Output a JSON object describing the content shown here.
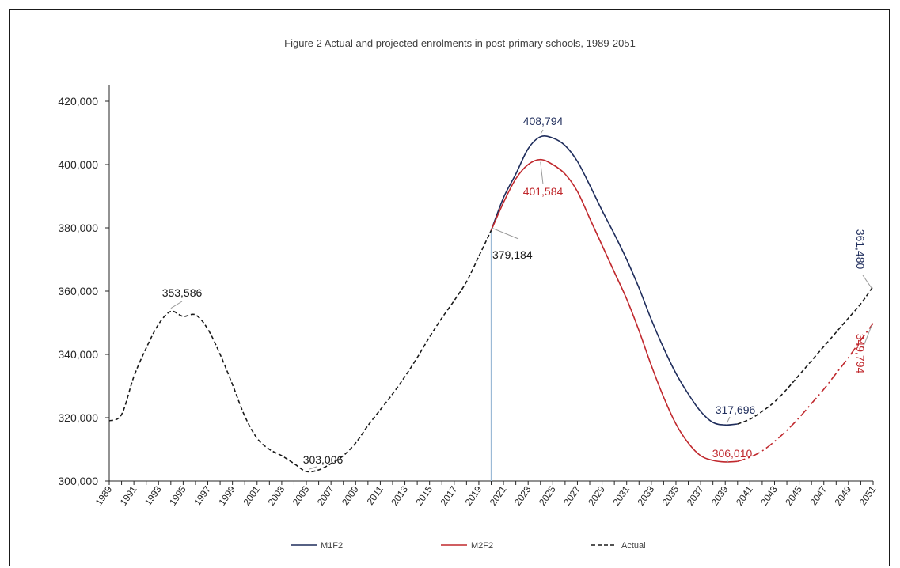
{
  "chart_data": {
    "type": "line",
    "title": "Figure 2 Actual and projected enrolments in post-primary schools, 1989-2051",
    "xlabel": "",
    "ylabel": "",
    "ylim": [
      300000,
      420000
    ],
    "xlim": [
      1989,
      2051
    ],
    "yticks": [
      "300,000",
      "320,000",
      "340,000",
      "360,000",
      "380,000",
      "400,000",
      "420,000"
    ],
    "ytick_values": [
      300000,
      320000,
      340000,
      360000,
      380000,
      400000,
      420000
    ],
    "xticks": [
      "1989",
      "1991",
      "1993",
      "1995",
      "1997",
      "1999",
      "2001",
      "2003",
      "2005",
      "2007",
      "2009",
      "2011",
      "2013",
      "2015",
      "2017",
      "2019",
      "2021",
      "2023",
      "2025",
      "2027",
      "2029",
      "2031",
      "2033",
      "2035",
      "2037",
      "2039",
      "2041",
      "2043",
      "2045",
      "2047",
      "2049",
      "2051"
    ],
    "grid": false,
    "legend_position": "bottom",
    "series": [
      {
        "name": "M1F2",
        "color": "#1f2d5c",
        "style": "solid",
        "x": [
          2020,
          2021,
          2022,
          2023,
          2024,
          2025,
          2026,
          2027,
          2028,
          2029,
          2030,
          2031,
          2032,
          2033,
          2034,
          2035,
          2036,
          2037,
          2038,
          2039,
          2040
        ],
        "y": [
          379184,
          389500,
          397000,
          405000,
          408794,
          408400,
          406000,
          401000,
          393500,
          385500,
          378000,
          370000,
          361000,
          351000,
          342000,
          334000,
          327500,
          322000,
          318500,
          317696,
          318000
        ]
      },
      {
        "name": "M2F2",
        "color": "#c0282d",
        "style": "solid",
        "x": [
          2020,
          2021,
          2022,
          2023,
          2024,
          2025,
          2026,
          2027,
          2028,
          2029,
          2030,
          2031,
          2032,
          2033,
          2034,
          2035,
          2036,
          2037,
          2038,
          2039,
          2040
        ],
        "y": [
          379184,
          388000,
          395500,
          400000,
          401584,
          400000,
          397000,
          391500,
          383000,
          374500,
          366000,
          357500,
          347500,
          336500,
          326500,
          318000,
          312000,
          308000,
          306500,
          306010,
          306200
        ]
      },
      {
        "name": "",
        "color": "#c0282d",
        "style": "dashdot",
        "x": [
          2040,
          2041,
          2042,
          2043,
          2044,
          2045,
          2046,
          2047,
          2048,
          2049,
          2050,
          2051
        ],
        "y": [
          306200,
          307500,
          309500,
          312500,
          316000,
          320000,
          324500,
          329000,
          334000,
          339000,
          344500,
          349794
        ]
      },
      {
        "name": "Actual",
        "color": "#1a1a1a",
        "style": "dashed",
        "x": [
          1989,
          1990,
          1991,
          1992,
          1993,
          1994,
          1995,
          1996,
          1997,
          1998,
          1999,
          2000,
          2001,
          2002,
          2003,
          2004,
          2005,
          2006,
          2007,
          2008,
          2009,
          2010,
          2011,
          2012,
          2013,
          2014,
          2015,
          2016,
          2017,
          2018,
          2019,
          2020
        ],
        "y": [
          319000,
          321000,
          333000,
          342000,
          349500,
          353586,
          352000,
          352500,
          348000,
          340000,
          330500,
          320500,
          313500,
          310000,
          308000,
          305500,
          303006,
          303500,
          305500,
          308000,
          312000,
          317500,
          322500,
          327500,
          333000,
          339000,
          345500,
          351500,
          357000,
          363000,
          371000,
          379184
        ]
      },
      {
        "name": "",
        "color": "#1a1a1a",
        "style": "dashed",
        "x": [
          2040,
          2041,
          2042,
          2043,
          2044,
          2045,
          2046,
          2047,
          2048,
          2049,
          2050,
          2051
        ],
        "y": [
          318000,
          319500,
          322000,
          325000,
          329000,
          333500,
          338000,
          342500,
          347000,
          351500,
          356000,
          361480
        ]
      }
    ],
    "annotations": [
      {
        "text": "353,586",
        "color": "#1a1a1a"
      },
      {
        "text": "303,006",
        "color": "#1a1a1a"
      },
      {
        "text": "379,184",
        "color": "#1a1a1a"
      },
      {
        "text": "408,794",
        "color": "#1f2d5c"
      },
      {
        "text": "401,584",
        "color": "#c0282d"
      },
      {
        "text": "317,696",
        "color": "#1f2d5c"
      },
      {
        "text": "306,010",
        "color": "#c0282d"
      },
      {
        "text": "361,480",
        "color": "#1f2d5c"
      },
      {
        "text": "349,794",
        "color": "#c0282d"
      }
    ],
    "vertical_marker": {
      "x": 2020,
      "color": "#9bbad6"
    },
    "legend": [
      {
        "label": "M1F2",
        "color": "#1f2d5c",
        "style": "solid"
      },
      {
        "label": "M2F2",
        "color": "#c0282d",
        "style": "solid"
      },
      {
        "label": "Actual",
        "color": "#1a1a1a",
        "style": "dashed"
      }
    ]
  }
}
